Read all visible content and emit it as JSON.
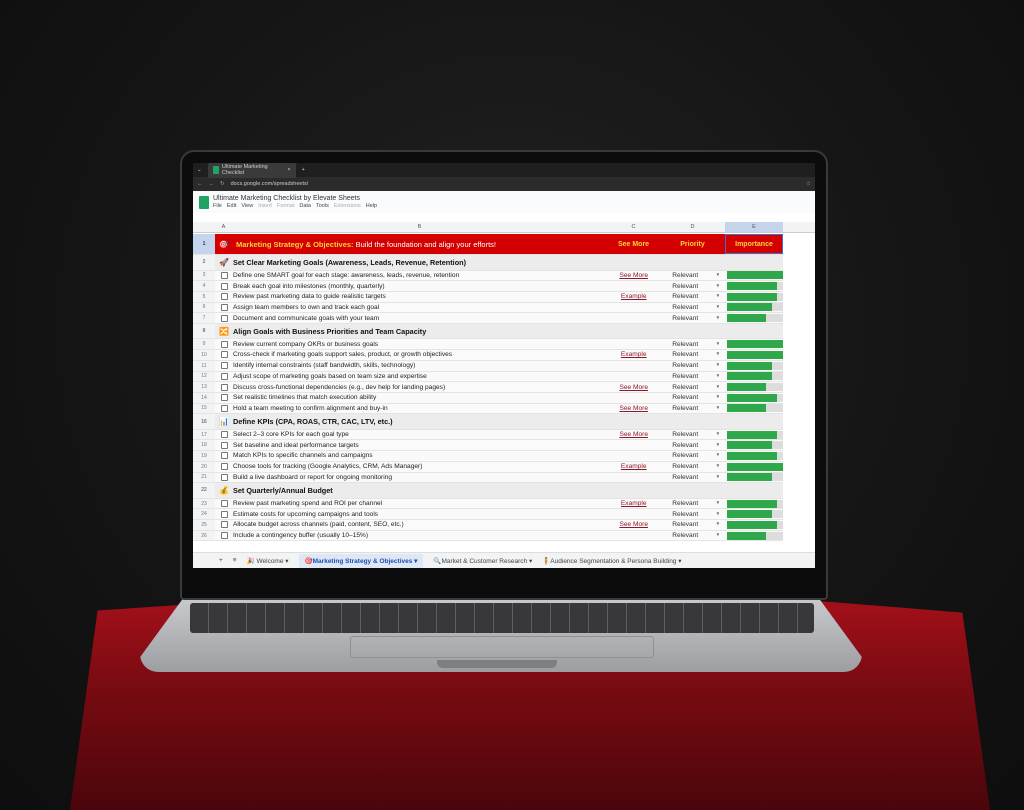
{
  "browser": {
    "tab_title": "Ultimate Marketing Checklist",
    "url": "docs.google.com/spreadsheets/"
  },
  "doc": {
    "title": "Ultimate Marketing Checklist by Elevate Sheets",
    "menu": [
      "File",
      "Edit",
      "View",
      "Insert",
      "Format",
      "Data",
      "Tools",
      "Extensions",
      "Help"
    ]
  },
  "columns": [
    "A",
    "B",
    "C",
    "D",
    "E"
  ],
  "header_row": {
    "title_bold": "Marketing Strategy & Objectives:",
    "title_rest": " Build the foundation and align your efforts!",
    "col_c": "See More",
    "col_d": "Priority",
    "col_e": "Importance"
  },
  "colors": {
    "header_red": "#d40000",
    "bar_green": "#2ea84a",
    "link": "#8b1a2a"
  },
  "rows": [
    {
      "n": "2",
      "type": "section",
      "icon": "🚀",
      "text": "Set Clear Marketing Goals (Awareness, Leads, Revenue, Retention)"
    },
    {
      "n": "3",
      "type": "item",
      "text": "Define one SMART goal for each stage: awareness, leads, revenue, retention",
      "link": "See More",
      "priority": "Relevant",
      "importance": 1.0
    },
    {
      "n": "4",
      "type": "item",
      "text": "Break each goal into milestones (monthly, quarterly)",
      "link": "",
      "priority": "Relevant",
      "importance": 0.9
    },
    {
      "n": "5",
      "type": "item",
      "text": "Review past marketing data to guide realistic targets",
      "link": "Example",
      "priority": "Relevant",
      "importance": 0.9
    },
    {
      "n": "6",
      "type": "item",
      "text": "Assign team members to own and track each goal",
      "link": "",
      "priority": "Relevant",
      "importance": 0.8
    },
    {
      "n": "7",
      "type": "item",
      "text": "Document and communicate goals with your team",
      "link": "",
      "priority": "Relevant",
      "importance": 0.7
    },
    {
      "n": "8",
      "type": "section",
      "icon": "🔀",
      "text": "Align Goals with Business Priorities and Team Capacity"
    },
    {
      "n": "9",
      "type": "item",
      "text": "Review current company OKRs or business goals",
      "link": "",
      "priority": "Relevant",
      "importance": 1.0
    },
    {
      "n": "10",
      "type": "item",
      "text": "Cross-check if marketing goals support sales, product, or growth objectives",
      "link": "Example",
      "priority": "Relevant",
      "importance": 1.0
    },
    {
      "n": "11",
      "type": "item",
      "text": "Identify internal constraints (staff bandwidth, skills, technology)",
      "link": "",
      "priority": "Relevant",
      "importance": 0.8
    },
    {
      "n": "12",
      "type": "item",
      "text": "Adjust scope of marketing goals based on team size and expertise",
      "link": "",
      "priority": "Relevant",
      "importance": 0.8
    },
    {
      "n": "13",
      "type": "item",
      "text": "Discuss cross-functional dependencies (e.g., dev help for landing pages)",
      "link": "See More",
      "priority": "Relevant",
      "importance": 0.7
    },
    {
      "n": "14",
      "type": "item",
      "text": "Set realistic timelines that match execution ability",
      "link": "",
      "priority": "Relevant",
      "importance": 0.9
    },
    {
      "n": "15",
      "type": "item",
      "text": "Hold a team meeting to confirm alignment and buy-in",
      "link": "See More",
      "priority": "Relevant",
      "importance": 0.7
    },
    {
      "n": "16",
      "type": "section",
      "icon": "📊",
      "text": "Define KPIs (CPA, ROAS, CTR, CAC, LTV, etc.)"
    },
    {
      "n": "17",
      "type": "item",
      "text": "Select 2–3 core KPIs for each goal type",
      "link": "See More",
      "priority": "Relevant",
      "importance": 0.9
    },
    {
      "n": "18",
      "type": "item",
      "text": "Set baseline and ideal performance targets",
      "link": "",
      "priority": "Relevant",
      "importance": 0.8
    },
    {
      "n": "19",
      "type": "item",
      "text": "Match KPIs to specific channels and campaigns",
      "link": "",
      "priority": "Relevant",
      "importance": 0.9
    },
    {
      "n": "20",
      "type": "item",
      "text": "Choose tools for tracking (Google Analytics, CRM, Ads Manager)",
      "link": "Example",
      "priority": "Relevant",
      "importance": 1.0
    },
    {
      "n": "21",
      "type": "item",
      "text": "Build a live dashboard or report for ongoing monitoring",
      "link": "",
      "priority": "Relevant",
      "importance": 0.8
    },
    {
      "n": "22",
      "type": "section",
      "icon": "💰",
      "text": "Set Quarterly/Annual Budget"
    },
    {
      "n": "23",
      "type": "item",
      "text": "Review past marketing spend and ROI per channel",
      "link": "Example",
      "priority": "Relevant",
      "importance": 0.9
    },
    {
      "n": "24",
      "type": "item",
      "text": "Estimate costs for upcoming campaigns and tools",
      "link": "",
      "priority": "Relevant",
      "importance": 0.8
    },
    {
      "n": "25",
      "type": "item",
      "text": "Allocate budget across channels (paid, content, SEO, etc.)",
      "link": "See More",
      "priority": "Relevant",
      "importance": 0.9
    },
    {
      "n": "26",
      "type": "item",
      "text": "Include a contingency buffer (usually 10–15%)",
      "link": "",
      "priority": "Relevant",
      "importance": 0.7
    }
  ],
  "sheet_tabs": [
    {
      "label": "🎉 Welcome",
      "active": false
    },
    {
      "label": "🎯Marketing Strategy & Objectives",
      "active": true
    },
    {
      "label": "🔍Market & Customer Research",
      "active": false
    },
    {
      "label": "🧍Audience Segmentation & Persona Building",
      "active": false
    }
  ]
}
